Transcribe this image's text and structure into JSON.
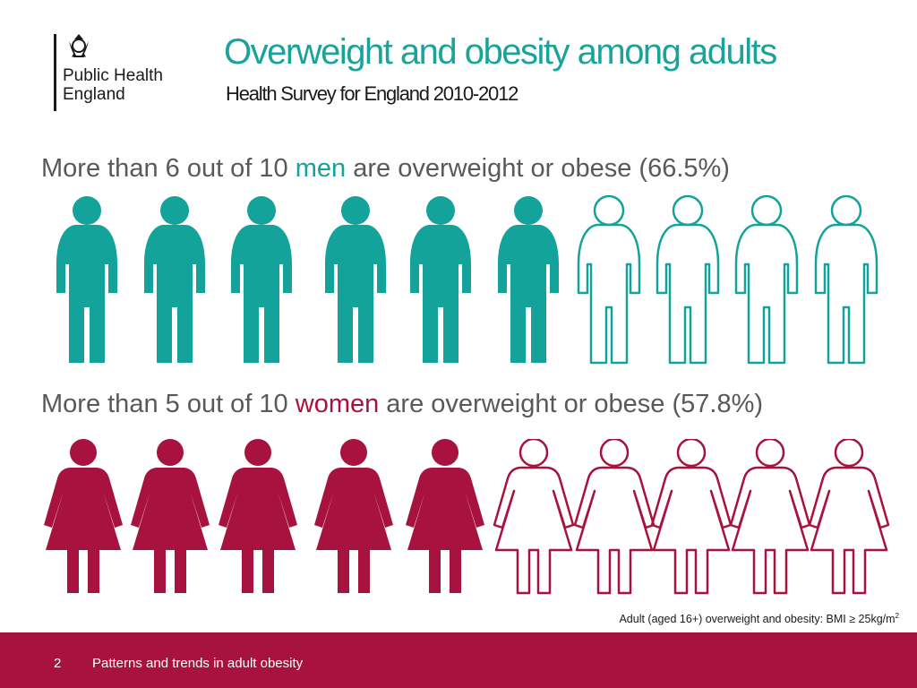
{
  "logo": {
    "org_line1": "Public Health",
    "org_line2": "England",
    "icon": "royal-crest-icon"
  },
  "title": "Overweight and obesity among adults",
  "subtitle": "Health Survey for England 2010-2012",
  "men": {
    "prefix": "More than 6 out of 10 ",
    "group": "men",
    "suffix": " are overweight or obese (66.5%)",
    "filled_count": 6,
    "total": 10,
    "color": "#13a39a",
    "icon": "man-icon"
  },
  "women": {
    "prefix": "More than 5 out of 10 ",
    "group": "women",
    "suffix": " are overweight or obese (57.8%)",
    "filled_count": 5,
    "total": 10,
    "color": "#a8123e",
    "icon": "woman-icon"
  },
  "footnote": {
    "text": "Adult (aged 16+) overweight and obesity: BMI ≥ 25kg/m",
    "superscript": "2"
  },
  "footer": {
    "slide_number": "2",
    "text": "Patterns and trends in adult obesity",
    "color": "#a8123e"
  }
}
